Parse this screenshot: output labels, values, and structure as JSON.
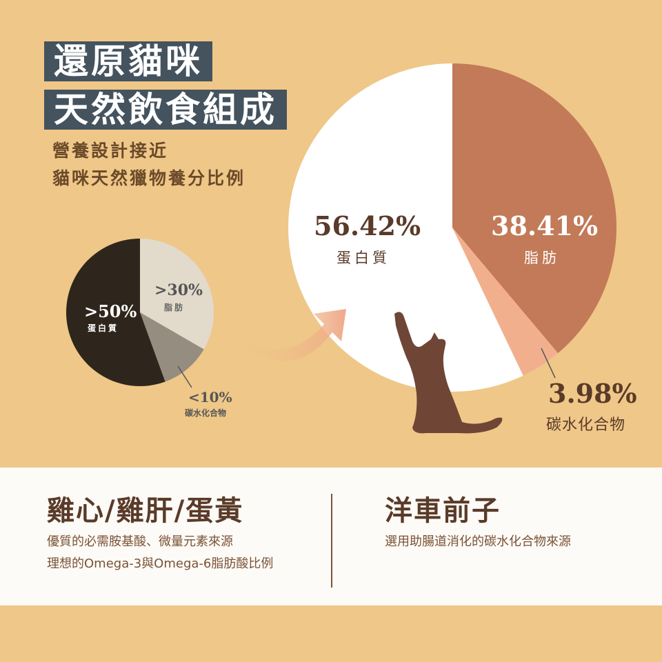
{
  "title": {
    "line1": "還原貓咪",
    "line2": "天然飲食組成"
  },
  "subtitle": {
    "line1": "營養設計接近",
    "line2": "貓咪天然獵物養分比例"
  },
  "chart_data": [
    {
      "type": "pie",
      "slices": [
        {
          "label": "脂肪",
          "value_label": ">30%",
          "value": 30,
          "color": "#E2DACB"
        },
        {
          "label": "碳水化合物",
          "value_label": "<10%",
          "value": 10,
          "color": "#958D80"
        },
        {
          "label": "蛋白質",
          "value_label": ">50%",
          "value": 50,
          "color": "#2E261C"
        }
      ]
    },
    {
      "type": "pie",
      "slices": [
        {
          "label": "脂肪",
          "value_label": "38.41%",
          "value": 38.41,
          "color": "#C27A58"
        },
        {
          "label": "碳水化合物",
          "value_label": "3.98%",
          "value": 3.98,
          "color": "#F2AF8E"
        },
        {
          "label": "蛋白質",
          "value_label": "56.42%",
          "value": 56.42,
          "color": "#FFFFFF"
        }
      ]
    }
  ],
  "ingredients": [
    {
      "title": "雞心/雞肝/蛋黃",
      "lines": [
        "優質的必需胺基酸、微量元素來源",
        "理想的Omega-3與Omega-6脂肪酸比例"
      ]
    },
    {
      "title": "洋車前子",
      "lines": [
        "選用助腸道消化的碳水化合物來源"
      ]
    }
  ]
}
